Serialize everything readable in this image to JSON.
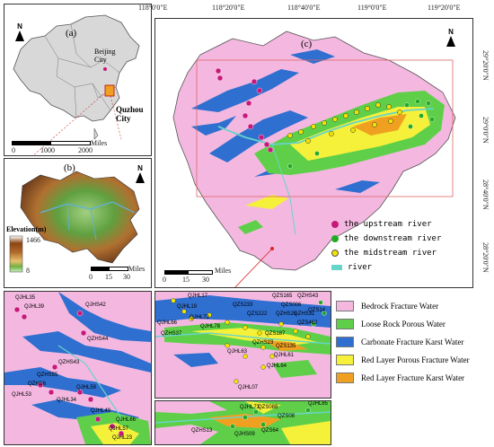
{
  "panels": {
    "a": {
      "label": "(a)",
      "beijing": "Beijing City",
      "quzhou": "Quzhou City",
      "scale_unit": "Miles",
      "scale_ticks": [
        "0",
        "1000",
        "2000"
      ]
    },
    "b": {
      "label": "(b)",
      "elevation_title": "Elevation(m)",
      "elev_max": "1466",
      "elev_min": "8",
      "scale_unit": "Miles",
      "scale_ticks": [
        "0",
        "15",
        "30"
      ]
    },
    "c": {
      "label": "(c)",
      "scale_unit": "Miles",
      "scale_ticks": [
        "0",
        "15",
        "30"
      ]
    }
  },
  "north_label": "N",
  "lon_ticks": [
    "118°0'0\"E",
    "118°20'0\"E",
    "118°40'0\"E",
    "119°0'0\"E",
    "119°20'0\"E"
  ],
  "lat_ticks": [
    "29°20'0\"N",
    "29°0'0\"N",
    "28°40'0\"N",
    "28°20'0\"N"
  ],
  "point_legend": [
    {
      "label": "the upstream river",
      "color": "#c8187a"
    },
    {
      "label": "the downstream river",
      "color": "#22aa22"
    },
    {
      "label": "the midstream river",
      "color": "#f2e400"
    },
    {
      "label": "river",
      "color": "#66d4c8"
    }
  ],
  "zone_legend": [
    {
      "label": "Bedrock Fracture Water",
      "color": "#f4b8e0"
    },
    {
      "label": "Loose Rock Porous Water",
      "color": "#5fcf4a"
    },
    {
      "label": "Carbonate Fracture Karst Water",
      "color": "#2f6fd0"
    },
    {
      "label": "Red Layer Porous Fracture Water",
      "color": "#f5f03a"
    },
    {
      "label": "Red Layer Fracture Karst Water",
      "color": "#f0a020"
    }
  ],
  "colors": {
    "bedrock": "#f4b8e0",
    "loose": "#5fcf4a",
    "carbonate": "#2f6fd0",
    "redporous": "#f5f03a",
    "redkarst": "#f0a020",
    "river": "#66d4c8",
    "upstream": "#c8187a",
    "downstream": "#22aa22",
    "midstream": "#f2e400"
  },
  "inset1_labels": [
    "QJHL35",
    "QJHL39",
    "QJHS42",
    "QZHS44",
    "QZHS43",
    "QZHS55",
    "QZHS6",
    "QJHL53",
    "QJHL59",
    "QJHL49",
    "QJHL66",
    "QJHL57",
    "QJHL23",
    "QJHL34"
  ],
  "inset2_labels": [
    "QJHL17",
    "QJHL19",
    "QZS165",
    "QZHS43",
    "QZS233",
    "QZS006",
    "QZS14",
    "QJHL72",
    "QZS222",
    "QZHS25",
    "QZHS31",
    "QZS462",
    "QJHL66",
    "QJHL78",
    "QZHS37",
    "QZS187",
    "QZHS23",
    "QJHL63",
    "QZS135",
    "QJHL61",
    "QJHL64",
    "QJHL07"
  ],
  "inset3_labels": [
    "QJHL85",
    "QJHL73",
    "QZS088",
    "QZHS13",
    "QZS64",
    "QJHS09",
    "QZS08"
  ]
}
